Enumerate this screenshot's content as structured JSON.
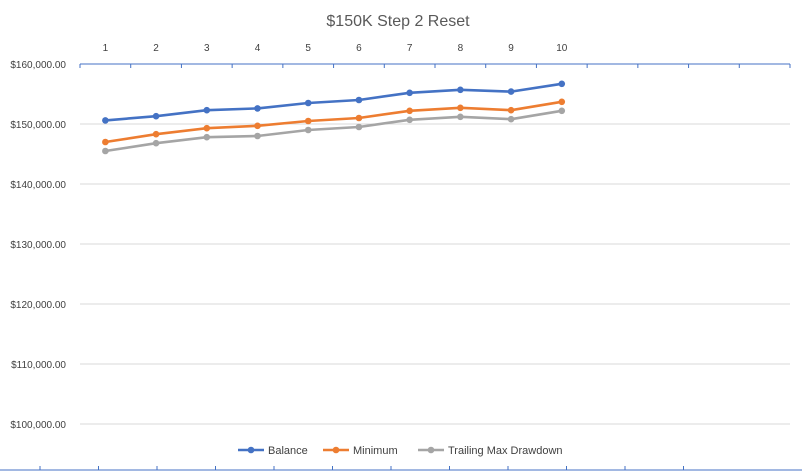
{
  "chart_data": {
    "type": "line",
    "title": "$150K Step 2 Reset",
    "x": [
      "1",
      "2",
      "3",
      "4",
      "5",
      "6",
      "7",
      "8",
      "9",
      "10"
    ],
    "x_axis_slots": 14,
    "x_axis_position": "top",
    "ylim": [
      100000,
      160000
    ],
    "ytick_step": 10000,
    "y_tick_labels": [
      "$100,000.00",
      "$110,000.00",
      "$120,000.00",
      "$130,000.00",
      "$140,000.00",
      "$150,000.00",
      "$160,000.00"
    ],
    "grid": true,
    "legend_position": "bottom",
    "series": [
      {
        "name": "Balance",
        "color": "#4472C4",
        "values": [
          150600,
          151300,
          152300,
          152600,
          153500,
          154000,
          155200,
          155700,
          155400,
          156700
        ]
      },
      {
        "name": "Minimum",
        "color": "#ED7D31",
        "values": [
          147000,
          148300,
          149300,
          149700,
          150500,
          151000,
          152200,
          152700,
          152300,
          153700
        ]
      },
      {
        "name": "Trailing Max Drawdown",
        "color": "#A5A5A5",
        "values": [
          145500,
          146800,
          147800,
          148000,
          149000,
          149500,
          150700,
          151200,
          150800,
          152200
        ]
      }
    ]
  }
}
